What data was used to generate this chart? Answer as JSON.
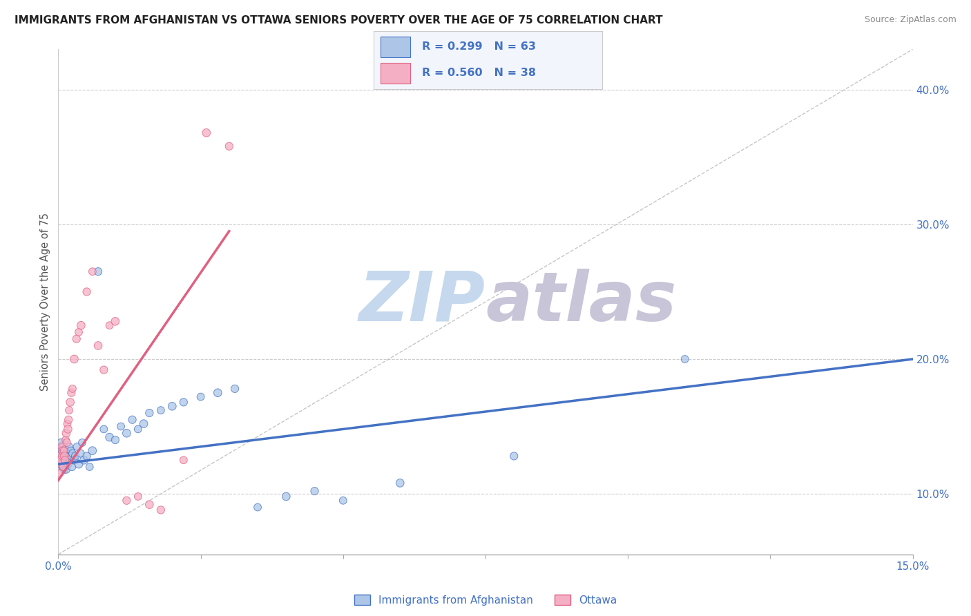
{
  "title": "IMMIGRANTS FROM AFGHANISTAN VS OTTAWA SENIORS POVERTY OVER THE AGE OF 75 CORRELATION CHART",
  "source": "Source: ZipAtlas.com",
  "ylabel": "Seniors Poverty Over the Age of 75",
  "xlim": [
    0.0,
    0.15
  ],
  "ylim": [
    0.055,
    0.43
  ],
  "xticks": [
    0.0,
    0.025,
    0.05,
    0.075,
    0.1,
    0.125,
    0.15
  ],
  "xticklabels": [
    "0.0%",
    "",
    "",
    "",
    "",
    "",
    "15.0%"
  ],
  "yticks_right": [
    0.1,
    0.2,
    0.3,
    0.4
  ],
  "yticklabels_right": [
    "10.0%",
    "20.0%",
    "30.0%",
    "40.0%"
  ],
  "R_blue": 0.299,
  "N_blue": 63,
  "R_pink": 0.56,
  "N_pink": 38,
  "blue_color": "#adc6e8",
  "pink_color": "#f5afc5",
  "blue_line_color": "#4472c4",
  "pink_line_color": "#e06080",
  "text_color": "#4472c4",
  "watermark_zip": "ZIP",
  "watermark_atlas": "atlas",
  "watermark_color_zip": "#c8d8ec",
  "watermark_color_atlas": "#c8c8d8",
  "grid_color": "#cccccc",
  "legend_box_color": "#f2f6fc",
  "blue_scatter_x": [
    0.0002,
    0.0003,
    0.0004,
    0.0005,
    0.0006,
    0.0006,
    0.0007,
    0.0008,
    0.0008,
    0.0009,
    0.001,
    0.001,
    0.0011,
    0.0012,
    0.0012,
    0.0013,
    0.0014,
    0.0014,
    0.0015,
    0.0016,
    0.0016,
    0.0017,
    0.0018,
    0.0019,
    0.002,
    0.0021,
    0.0022,
    0.0023,
    0.0024,
    0.0025,
    0.0028,
    0.003,
    0.0033,
    0.0036,
    0.0039,
    0.0042,
    0.0045,
    0.005,
    0.0055,
    0.006,
    0.007,
    0.008,
    0.009,
    0.01,
    0.011,
    0.012,
    0.013,
    0.014,
    0.015,
    0.016,
    0.018,
    0.02,
    0.022,
    0.025,
    0.028,
    0.031,
    0.035,
    0.04,
    0.045,
    0.05,
    0.06,
    0.08,
    0.11
  ],
  "blue_scatter_y": [
    0.128,
    0.132,
    0.125,
    0.138,
    0.122,
    0.13,
    0.12,
    0.128,
    0.135,
    0.125,
    0.118,
    0.132,
    0.125,
    0.128,
    0.12,
    0.132,
    0.125,
    0.118,
    0.13,
    0.125,
    0.128,
    0.122,
    0.13,
    0.135,
    0.128,
    0.125,
    0.132,
    0.128,
    0.12,
    0.13,
    0.125,
    0.128,
    0.135,
    0.122,
    0.13,
    0.138,
    0.125,
    0.128,
    0.12,
    0.132,
    0.265,
    0.148,
    0.142,
    0.14,
    0.15,
    0.145,
    0.155,
    0.148,
    0.152,
    0.16,
    0.162,
    0.165,
    0.168,
    0.172,
    0.175,
    0.178,
    0.09,
    0.098,
    0.102,
    0.095,
    0.108,
    0.128,
    0.2
  ],
  "blue_scatter_size": [
    200,
    60,
    55,
    65,
    60,
    70,
    60,
    65,
    60,
    70,
    65,
    60,
    70,
    65,
    60,
    70,
    65,
    60,
    70,
    65,
    60,
    70,
    65,
    60,
    70,
    65,
    60,
    70,
    65,
    60,
    70,
    65,
    60,
    70,
    65,
    60,
    70,
    65,
    60,
    70,
    65,
    60,
    70,
    65,
    60,
    70,
    65,
    60,
    70,
    65,
    60,
    70,
    65,
    60,
    70,
    65,
    60,
    70,
    65,
    60,
    70,
    65,
    60
  ],
  "pink_scatter_x": [
    0.0002,
    0.0003,
    0.0004,
    0.0005,
    0.0006,
    0.0007,
    0.0008,
    0.0009,
    0.001,
    0.0011,
    0.0012,
    0.0013,
    0.0014,
    0.0015,
    0.0016,
    0.0017,
    0.0018,
    0.0019,
    0.0021,
    0.0023,
    0.0025,
    0.0028,
    0.0032,
    0.0036,
    0.004,
    0.005,
    0.006,
    0.007,
    0.008,
    0.009,
    0.01,
    0.012,
    0.014,
    0.016,
    0.018,
    0.022,
    0.026,
    0.03
  ],
  "pink_scatter_y": [
    0.115,
    0.128,
    0.122,
    0.125,
    0.135,
    0.128,
    0.132,
    0.12,
    0.132,
    0.128,
    0.125,
    0.14,
    0.145,
    0.138,
    0.152,
    0.148,
    0.155,
    0.162,
    0.168,
    0.175,
    0.178,
    0.2,
    0.215,
    0.22,
    0.225,
    0.25,
    0.265,
    0.21,
    0.192,
    0.225,
    0.228,
    0.095,
    0.098,
    0.092,
    0.088,
    0.125,
    0.368,
    0.358
  ],
  "pink_scatter_size": [
    60,
    65,
    60,
    70,
    65,
    60,
    70,
    65,
    60,
    70,
    65,
    60,
    70,
    65,
    60,
    70,
    65,
    60,
    70,
    65,
    60,
    70,
    65,
    60,
    70,
    65,
    60,
    70,
    65,
    60,
    70,
    65,
    60,
    70,
    65,
    60,
    70,
    65
  ],
  "blue_trend_x0": 0.0,
  "blue_trend_y0": 0.122,
  "blue_trend_x1": 0.15,
  "blue_trend_y1": 0.2,
  "pink_trend_x0": 0.0,
  "pink_trend_y0": 0.11,
  "pink_trend_x1": 0.03,
  "pink_trend_y1": 0.295,
  "ref_line_x": [
    0.0,
    0.15
  ],
  "ref_line_y": [
    0.055,
    0.43
  ]
}
